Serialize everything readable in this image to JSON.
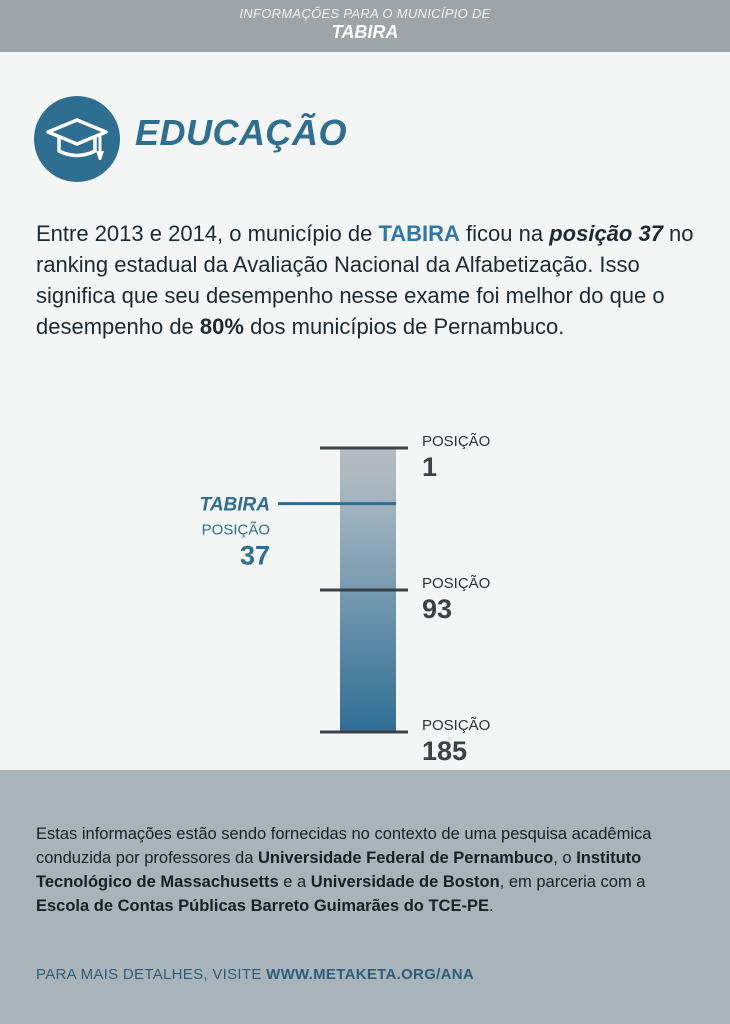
{
  "header": {
    "kicker": "INFORMAÇÕES PARA O MUNICÍPIO DE",
    "municipality": "TABIRA"
  },
  "section": {
    "icon": "graduation-cap-icon",
    "title": "EDUCAÇÃO"
  },
  "intro": {
    "t1": "Entre 2013 e 2014, o município de ",
    "municipality": "TABIRA",
    "t2": " ficou na ",
    "position_phrase": "posição 37",
    "t3": " no ranking estadual da Avaliação Nacional da Alfabetização. Isso significa que seu desempenho nesse exame foi melhor do que o desempenho de ",
    "percent": "80%",
    "t4": " dos municípios de Pernambuco."
  },
  "chart_data": {
    "type": "bar",
    "scale_min": 1,
    "scale_max": 185,
    "markers": [
      {
        "label": "POSIÇÃO",
        "value": 1,
        "value_text": "1"
      },
      {
        "label": "POSIÇÃO",
        "value": 93,
        "value_text": "93"
      },
      {
        "label": "POSIÇÃO",
        "value": 185,
        "value_text": "185"
      }
    ],
    "highlight": {
      "name": "TABIRA",
      "label": "POSIÇÃO",
      "value": 37,
      "value_text": "37"
    },
    "colors": {
      "top": "#b7bcbf",
      "bottom": "#2f6e95",
      "accent": "#2e6e90"
    }
  },
  "footer": {
    "s1": "Estas informações estão sendo fornecidas no contexto de uma pesquisa acadêmica conduzida por professores da ",
    "b1": "Universidade Federal de Pernambuco",
    "s2": ", o ",
    "b2": "Instituto Tecnológico de Massachusetts",
    "s3": " e a ",
    "b3": "Universidade de Boston",
    "s4": ", em parceria com a ",
    "b4": "Escola de Contas Públicas Barreto Guimarães do TCE-PE",
    "s5": ".",
    "more_label": "PARA MAIS DETALHES, VISITE ",
    "more_url": "WWW.METAKETA.ORG/ANA"
  }
}
